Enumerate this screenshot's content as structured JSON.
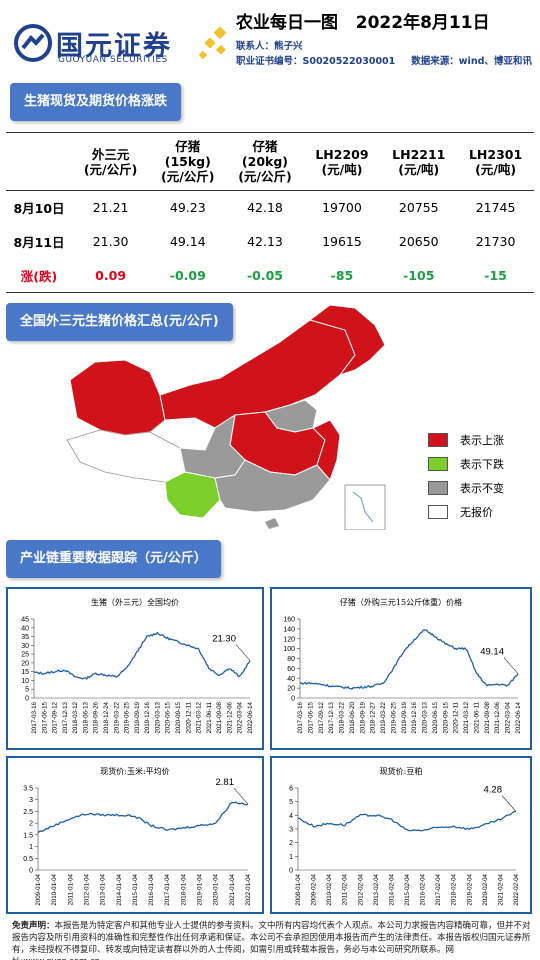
{
  "header": {
    "brand_cn": "国元证券",
    "brand_en": "GUOYUAN SECURITIES",
    "title": "农业每日一图",
    "date": "2022年8月11日",
    "contact": "联系人：熊子兴",
    "cert": "职业证书编号：S0020522030001",
    "source": "数据来源：wind、博亚和讯"
  },
  "sections": {
    "prices": "生猪现货及期货价格涨跌",
    "map": "全国外三元生猪价格汇总(元/公斤)",
    "chain": "产业链重要数据跟踪（元/公斤）"
  },
  "table": {
    "headers": [
      [
        "外三元",
        "(元/公斤)"
      ],
      [
        "仔猪",
        "(15kg)",
        "(元/公斤)"
      ],
      [
        "仔猪",
        "(20kg)",
        "(元/公斤)"
      ],
      [
        "LH2209",
        "(元/吨)"
      ],
      [
        "LH2211",
        "(元/吨)"
      ],
      [
        "LH2301",
        "(元/吨)"
      ]
    ],
    "rows": [
      {
        "label": "8月10日",
        "values": [
          "21.21",
          "49.23",
          "42.18",
          "19700",
          "20755",
          "21745"
        ]
      },
      {
        "label": "8月11日",
        "values": [
          "21.30",
          "49.14",
          "42.13",
          "19615",
          "20650",
          "21730"
        ]
      },
      {
        "label": "涨(跌)",
        "values": [
          "0.09",
          "-0.09",
          "-0.05",
          "-85",
          "-105",
          "-15"
        ]
      }
    ]
  },
  "map": {
    "legend": [
      {
        "label": "表示上涨",
        "color": "#d0121b"
      },
      {
        "label": "表示下跌",
        "color": "#7ccf2a"
      },
      {
        "label": "表示不变",
        "color": "#9a9a9a"
      },
      {
        "label": "无报价",
        "color": "#ffffff"
      }
    ]
  },
  "chart_data": [
    {
      "type": "line",
      "title": "生猪（外三元）全国均价",
      "ylim": [
        0,
        45
      ],
      "yticks": [
        0,
        5,
        10,
        15,
        20,
        25,
        30,
        35,
        40,
        45
      ],
      "x": [
        "2017-03-16",
        "2017-06-15",
        "2017-09-12",
        "2017-12-13",
        "2018-03-12",
        "2018-06-13",
        "2018-09-26",
        "2018-12-24",
        "2019-03-22",
        "2019-06-25",
        "2019-09-19",
        "2019-12-16",
        "2020-03-13",
        "2020-06-15",
        "2020-09-15",
        "2020-12-11",
        "2021-03-12",
        "2021-06-11",
        "2021-09-08",
        "2021-12-06",
        "2022-03-04",
        "2022-06-14"
      ],
      "values": [
        14.5,
        14,
        15,
        16,
        12,
        11,
        14,
        13,
        12,
        17,
        26,
        35,
        37,
        34,
        32,
        30,
        28,
        17,
        13,
        17,
        12,
        21.3
      ],
      "callout": "21.30"
    },
    {
      "type": "line",
      "title": "仔猪（外购三元15公斤体重）价格",
      "ylim": [
        0,
        160
      ],
      "yticks": [
        0,
        20,
        40,
        60,
        80,
        100,
        120,
        140,
        160
      ],
      "x": [
        "2017-03-16",
        "2017-06-15",
        "2017-09-12",
        "2017-12-13",
        "2018-03-22",
        "2018-06-20",
        "2018-09-19",
        "2018-12-27",
        "2019-03-22",
        "2019-06-25",
        "2019-09-19",
        "2019-12-16",
        "2020-03-13",
        "2020-06-15",
        "2020-09-15",
        "2020-12-11",
        "2021-03-12",
        "2021-06-11",
        "2021-09-08",
        "2021-12-06",
        "2022-03-04",
        "2022-06-14"
      ],
      "values": [
        30,
        30,
        28,
        24,
        22,
        20,
        22,
        24,
        30,
        60,
        95,
        118,
        138,
        125,
        110,
        100,
        100,
        50,
        25,
        28,
        25,
        49.14
      ],
      "callout": "49.14"
    },
    {
      "type": "line",
      "title": "现货价:玉米:平均价",
      "ylim": [
        0,
        3.5
      ],
      "yticks": [
        0,
        0.5,
        1,
        1.5,
        2,
        2.5,
        3,
        3.5
      ],
      "x": [
        "2009-01-04",
        "2010-01-04",
        "2011-01-04",
        "2012-01-04",
        "2013-01-04",
        "2014-01-04",
        "2015-01-04",
        "2016-01-04",
        "2017-01-04",
        "2018-01-04",
        "2019-01-04",
        "2020-01-04",
        "2021-01-04",
        "2022-01-04"
      ],
      "values": [
        1.6,
        1.9,
        2.2,
        2.4,
        2.35,
        2.35,
        2.3,
        1.9,
        1.7,
        1.8,
        1.9,
        2,
        2.9,
        2.81
      ],
      "callout": "2.81"
    },
    {
      "type": "line",
      "title": "现货价:豆粕",
      "ylim": [
        0,
        6
      ],
      "yticks": [
        0,
        1,
        2,
        3,
        4,
        5,
        6
      ],
      "x": [
        "2008-01-04",
        "2009-02-04",
        "2010-02-04",
        "2011-02-04",
        "2012-02-04",
        "2013-02-04",
        "2014-02-04",
        "2015-02-04",
        "2016-02-04",
        "2017-02-04",
        "2018-02-04",
        "2019-02-04",
        "2020-02-04",
        "2021-02-04",
        "2022-02-04"
      ],
      "values": [
        3.8,
        3.2,
        3.4,
        3.3,
        4,
        4,
        3.7,
        2.9,
        2.9,
        3.1,
        3.2,
        3,
        3.3,
        3.7,
        4.28
      ],
      "callout": "4.28"
    }
  ],
  "disclaimer": {
    "label": "免责声明：",
    "text": "本报告是为特定客户和其他专业人士提供的参考资料。文中所有内容均代表个人观点。本公司力求报告内容精确可靠，但并不对报告内容及所引用资料的准确性和完整性作出任何承诺和保证。本公司不会承担因使用本报告而产生的法律责任。本报告版权归国元证券所有，未经授权不得复印、转发或向特定读者群以外的人士传阅，如需引用或转载本报告，务必与本公司研究所联系。网址:www.gyzq.com.cn"
  }
}
